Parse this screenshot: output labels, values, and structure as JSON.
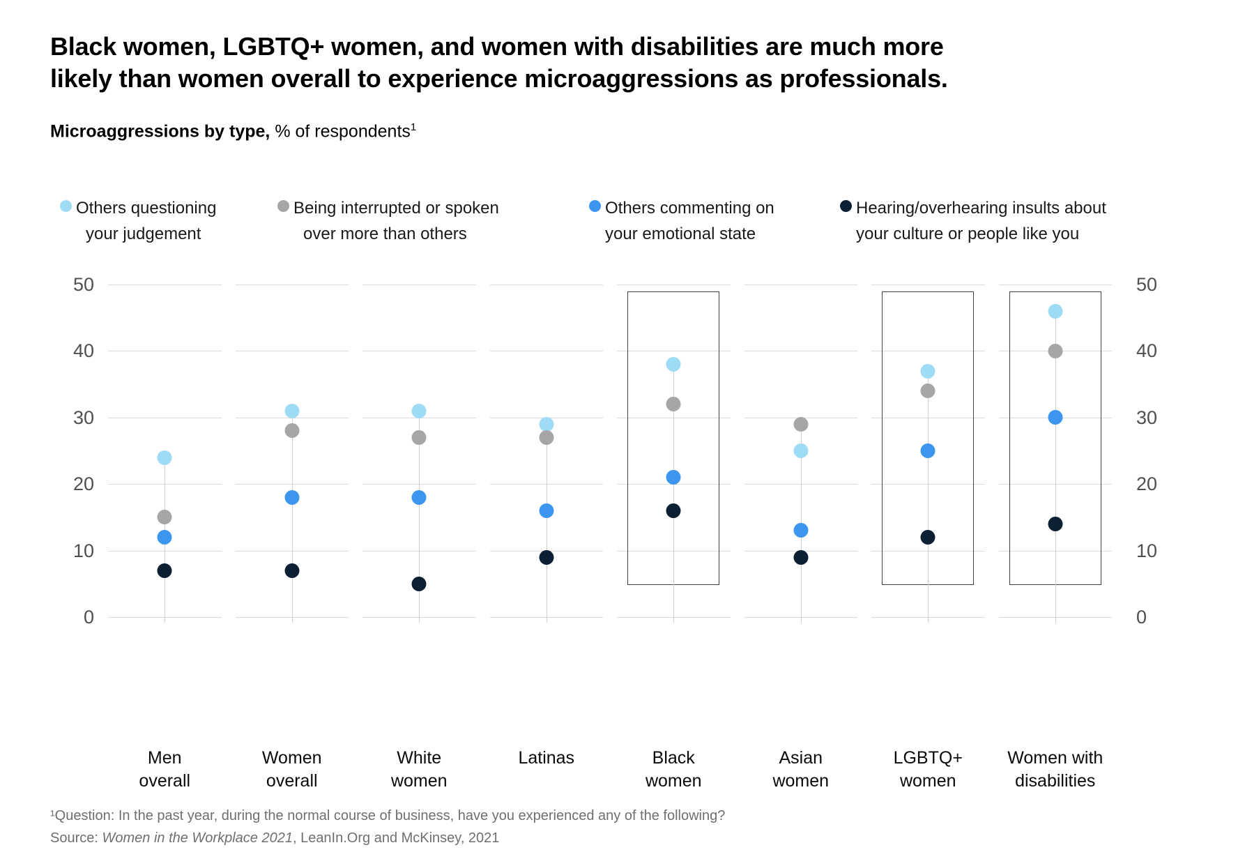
{
  "page": {
    "title_lines": [
      "Black women, LGBTQ+ women, and women with disabilities are much more",
      "likely than women overall to experience microaggressions as professionals."
    ],
    "subtitle_bold": "Microaggressions by type,",
    "subtitle_regular": " % of respondents",
    "subtitle_superscript": "1",
    "footnote_line1": "¹Question: In the past year, during the normal course of business, have you experienced any of the following?",
    "source_prefix": "Source: ",
    "source_italic": "Women in the Workplace 2021",
    "source_suffix": ", LeanIn.Org and McKinsey, 2021"
  },
  "legend": {
    "items": [
      {
        "line1": "Others questioning",
        "line2": "your judgement",
        "color": "#9EDCF6"
      },
      {
        "line1": "Being interrupted or spoken",
        "line2": "over more than others",
        "color": "#A6A6A6"
      },
      {
        "line1": "Others commenting on",
        "line2": "your emotional state",
        "color": "#3C96F0"
      },
      {
        "line1": "Hearing/overhearing insults about",
        "line2": "your culture or people like you",
        "color": "#0D1F33"
      }
    ]
  },
  "chart_data": {
    "type": "scatter",
    "title": "Microaggressions by type, % of respondents",
    "categories": [
      "Men overall",
      "Women overall",
      "White women",
      "Latinas",
      "Black women",
      "Asian women",
      "LGBTQ+ women",
      "Women with disabilities"
    ],
    "category_label_lines": [
      [
        "Men",
        "overall"
      ],
      [
        "Women",
        "overall"
      ],
      [
        "White",
        "women"
      ],
      [
        "Latinas"
      ],
      [
        "Black",
        "women"
      ],
      [
        "Asian",
        "women"
      ],
      [
        "LGBTQ+",
        "women"
      ],
      [
        "Women with",
        "disabilities"
      ]
    ],
    "series": [
      {
        "name": "Others questioning your judgement",
        "color": "#9EDCF6",
        "values": [
          24,
          31,
          31,
          29,
          38,
          25,
          37,
          46
        ]
      },
      {
        "name": "Being interrupted or spoken over more than others",
        "color": "#A6A6A6",
        "values": [
          15,
          28,
          27,
          27,
          32,
          29,
          34,
          40
        ]
      },
      {
        "name": "Others commenting on your emotional state",
        "color": "#3C96F0",
        "values": [
          12,
          18,
          18,
          16,
          21,
          13,
          25,
          30
        ]
      },
      {
        "name": "Hearing/overhearing insults about your culture or people like you",
        "color": "#0D1F33",
        "values": [
          7,
          7,
          5,
          9,
          16,
          9,
          12,
          14
        ]
      }
    ],
    "highlighted_categories": [
      "Black women",
      "LGBTQ+ women",
      "Women with disabilities"
    ],
    "highlighted_indices": [
      4,
      6,
      7
    ],
    "ylim": [
      0,
      50
    ],
    "yticks": [
      0,
      10,
      20,
      30,
      40,
      50
    ],
    "grid": "horizontal-segmented",
    "legend_position": "top",
    "y_axis_sides": "both"
  },
  "colors": {
    "gridline": "#dbdbdb",
    "stem": "#cfcfcf",
    "highlight_box_border": "#404040",
    "axis_label": "#4f4f4f",
    "footnote_text": "#6f6f6f",
    "title_text": "#000000"
  }
}
